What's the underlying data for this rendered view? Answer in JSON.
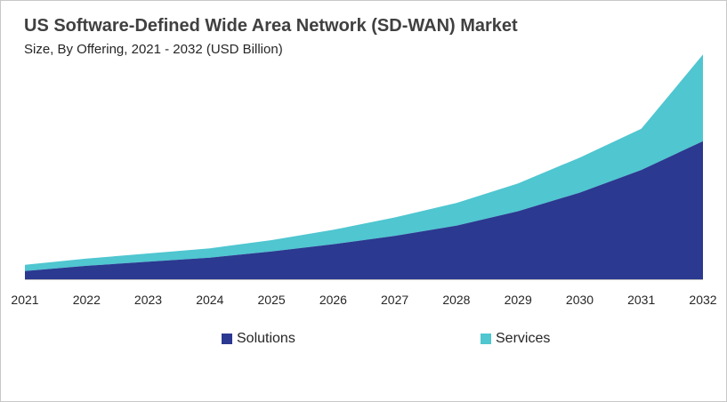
{
  "header": {
    "title": "US Software-Defined Wide Area Network (SD-WAN) Market",
    "subtitle": "Size, By Offering, 2021 - 2032 (USD Billion)"
  },
  "colors": {
    "solutions": "#2b3990",
    "services": "#4fc6d0",
    "axis": "#bfbfbf"
  },
  "chart_data": {
    "type": "area",
    "stacked": true,
    "title": "US Software-Defined Wide Area Network (SD-WAN) Market",
    "subtitle": "Size, By Offering, 2021 - 2032 (USD Billion)",
    "categories": [
      "2021",
      "2022",
      "2023",
      "2024",
      "2025",
      "2026",
      "2027",
      "2028",
      "2029",
      "2030",
      "2031",
      "2032"
    ],
    "series": [
      {
        "name": "Solutions",
        "values": [
          0.4,
          0.65,
          0.85,
          1.05,
          1.35,
          1.7,
          2.1,
          2.6,
          3.3,
          4.2,
          5.3,
          6.7
        ]
      },
      {
        "name": "Services",
        "values": [
          0.3,
          0.35,
          0.4,
          0.45,
          0.55,
          0.7,
          0.9,
          1.1,
          1.35,
          1.7,
          2.0,
          4.2
        ]
      }
    ],
    "ylim": [
      0,
      11
    ],
    "grid": false,
    "legend": "bottom"
  },
  "legend": [
    {
      "label": "Solutions"
    },
    {
      "label": "Services"
    }
  ]
}
